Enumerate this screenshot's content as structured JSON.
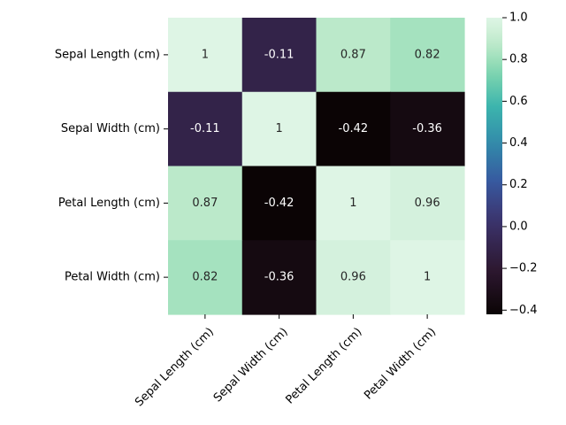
{
  "chart_data": {
    "type": "heatmap",
    "title": "",
    "xlabel": "",
    "ylabel": "",
    "rows": [
      "Sepal Length (cm)",
      "Sepal Width (cm)",
      "Petal Length (cm)",
      "Petal Width (cm)"
    ],
    "columns": [
      "Sepal Length (cm)",
      "Sepal Width (cm)",
      "Petal Length (cm)",
      "Petal Width (cm)"
    ],
    "values": [
      [
        1,
        -0.11,
        0.87,
        0.82
      ],
      [
        -0.11,
        1,
        -0.42,
        -0.36
      ],
      [
        0.87,
        -0.42,
        1,
        0.96
      ],
      [
        0.82,
        -0.36,
        0.96,
        1
      ]
    ],
    "cell_labels": [
      [
        "1",
        "-0.11",
        "0.87",
        "0.82"
      ],
      [
        "-0.11",
        "1",
        "-0.42",
        "-0.36"
      ],
      [
        "0.87",
        "-0.42",
        "1",
        "0.96"
      ],
      [
        "0.82",
        "-0.36",
        "0.96",
        "1"
      ]
    ],
    "colormap": "mako",
    "vmin": -0.42,
    "vmax": 1,
    "colorbar": {
      "ticks": [
        -0.4,
        -0.2,
        0.0,
        0.2,
        0.4,
        0.6,
        0.8,
        1.0
      ],
      "tick_labels": [
        "−0.4",
        "−0.2",
        "0.0",
        "0.2",
        "0.4",
        "0.6",
        "0.8",
        "1.0"
      ],
      "placement": "right"
    },
    "grid": false
  }
}
